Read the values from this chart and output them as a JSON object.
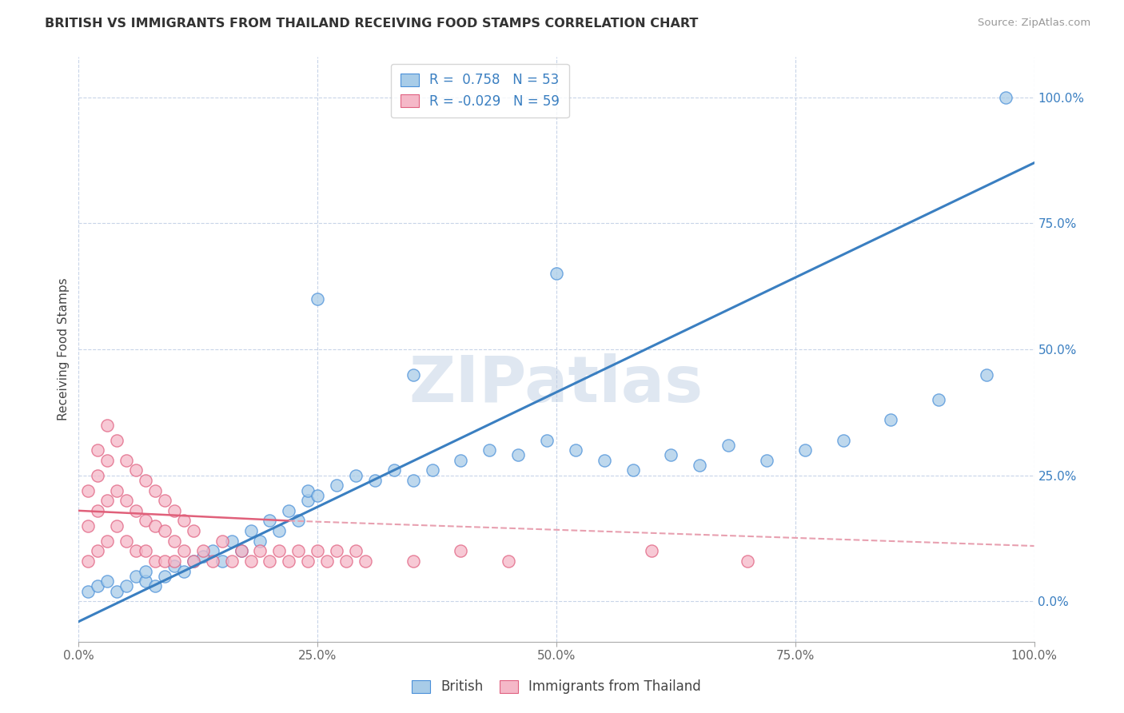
{
  "title": "BRITISH VS IMMIGRANTS FROM THAILAND RECEIVING FOOD STAMPS CORRELATION CHART",
  "source": "Source: ZipAtlas.com",
  "ylabel": "Receiving Food Stamps",
  "watermark": "ZIPatlas",
  "legend_british_R": "0.758",
  "legend_british_N": "53",
  "legend_thailand_R": "-0.029",
  "legend_thailand_N": "59",
  "british_color": "#a8cce8",
  "british_edge_color": "#4a90d9",
  "thailand_color": "#f5b8c8",
  "thailand_edge_color": "#e06080",
  "trend_british_color": "#3a7fc1",
  "trend_thailand_solid_color": "#e0607a",
  "trend_thailand_dash_color": "#e8a0b0",
  "background": "#ffffff",
  "grid_color": "#c8d4e8",
  "xlim": [
    0,
    100
  ],
  "ylim": [
    -8,
    108
  ],
  "xticks": [
    0,
    25,
    50,
    75,
    100
  ],
  "xticklabels": [
    "0.0%",
    "25.0%",
    "50.0%",
    "75.0%",
    "100.0%"
  ],
  "yticks_right": [
    0,
    25,
    50,
    75,
    100
  ],
  "yticklabels_right": [
    "0.0%",
    "25.0%",
    "50.0%",
    "75.0%",
    "100.0%"
  ],
  "british_x": [
    1,
    2,
    3,
    4,
    5,
    6,
    7,
    7,
    8,
    9,
    10,
    11,
    12,
    13,
    14,
    15,
    16,
    17,
    18,
    19,
    20,
    21,
    22,
    23,
    24,
    24,
    25,
    27,
    29,
    31,
    33,
    35,
    37,
    40,
    43,
    46,
    49,
    52,
    55,
    58,
    62,
    65,
    68,
    72,
    76,
    80,
    85,
    90,
    95,
    97,
    25,
    35,
    50
  ],
  "british_y": [
    2,
    3,
    4,
    2,
    3,
    5,
    4,
    6,
    3,
    5,
    7,
    6,
    8,
    9,
    10,
    8,
    12,
    10,
    14,
    12,
    16,
    14,
    18,
    16,
    20,
    22,
    21,
    23,
    25,
    24,
    26,
    24,
    26,
    28,
    30,
    29,
    32,
    30,
    28,
    26,
    29,
    27,
    31,
    28,
    30,
    32,
    36,
    40,
    45,
    100,
    60,
    45,
    65
  ],
  "thailand_x": [
    1,
    1,
    1,
    2,
    2,
    2,
    2,
    3,
    3,
    3,
    3,
    4,
    4,
    4,
    5,
    5,
    5,
    6,
    6,
    6,
    7,
    7,
    7,
    8,
    8,
    8,
    9,
    9,
    9,
    10,
    10,
    10,
    11,
    11,
    12,
    12,
    13,
    14,
    15,
    16,
    17,
    18,
    19,
    20,
    21,
    22,
    23,
    24,
    25,
    26,
    27,
    28,
    29,
    30,
    35,
    40,
    45,
    60,
    70
  ],
  "thailand_y": [
    8,
    15,
    22,
    10,
    18,
    25,
    30,
    12,
    20,
    28,
    35,
    15,
    22,
    32,
    12,
    20,
    28,
    10,
    18,
    26,
    10,
    16,
    24,
    8,
    15,
    22,
    8,
    14,
    20,
    8,
    12,
    18,
    10,
    16,
    8,
    14,
    10,
    8,
    12,
    8,
    10,
    8,
    10,
    8,
    10,
    8,
    10,
    8,
    10,
    8,
    10,
    8,
    10,
    8,
    8,
    10,
    8,
    10,
    8
  ],
  "trend_british_x0": 0,
  "trend_british_x1": 100,
  "trend_british_y0": -4,
  "trend_british_y1": 87,
  "trend_thailand_solid_x0": 0,
  "trend_thailand_solid_x1": 22,
  "trend_thailand_solid_y0": 18,
  "trend_thailand_solid_y1": 16,
  "trend_thailand_dash_x0": 22,
  "trend_thailand_dash_x1": 100,
  "trend_thailand_dash_y0": 16,
  "trend_thailand_dash_y1": 11
}
